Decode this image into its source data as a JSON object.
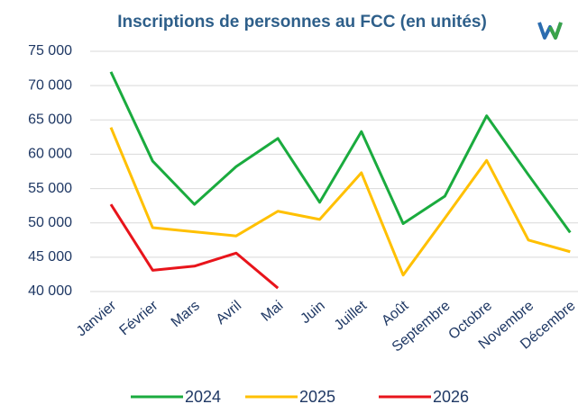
{
  "chart_data": {
    "type": "line",
    "title": "Inscriptions de personnes au FCC (en unités)",
    "categories": [
      "Janvier",
      "Février",
      "Mars",
      "Avril",
      "Mai",
      "Juin",
      "Juillet",
      "Août",
      "Septembre",
      "Octobre",
      "Novembre",
      "Décembre"
    ],
    "series": [
      {
        "name": "2024",
        "color": "#1aab3e",
        "values": [
          72000,
          59000,
          52700,
          58200,
          62300,
          53000,
          63300,
          49900,
          53900,
          65600,
          57000,
          48600
        ]
      },
      {
        "name": "2025",
        "color": "#ffc000",
        "values": [
          63900,
          49300,
          48700,
          48100,
          51700,
          50500,
          57300,
          42400,
          50700,
          59100,
          47500,
          45800
        ]
      },
      {
        "name": "2026",
        "color": "#e8141b",
        "values": [
          52700,
          43100,
          43700,
          45600,
          40500,
          null,
          null,
          null,
          null,
          null,
          null,
          null
        ]
      }
    ],
    "ylim": [
      40000,
      75000
    ],
    "yticks": [
      {
        "value": 40000,
        "label": "40 000"
      },
      {
        "value": 45000,
        "label": "45 000"
      },
      {
        "value": 50000,
        "label": "50 000"
      },
      {
        "value": 55000,
        "label": "55 000"
      },
      {
        "value": 60000,
        "label": "60 000"
      },
      {
        "value": 65000,
        "label": "65 000"
      },
      {
        "value": 70000,
        "label": "70 000"
      },
      {
        "value": 75000,
        "label": "75 000"
      }
    ],
    "grid": true,
    "legend": "bottom"
  }
}
